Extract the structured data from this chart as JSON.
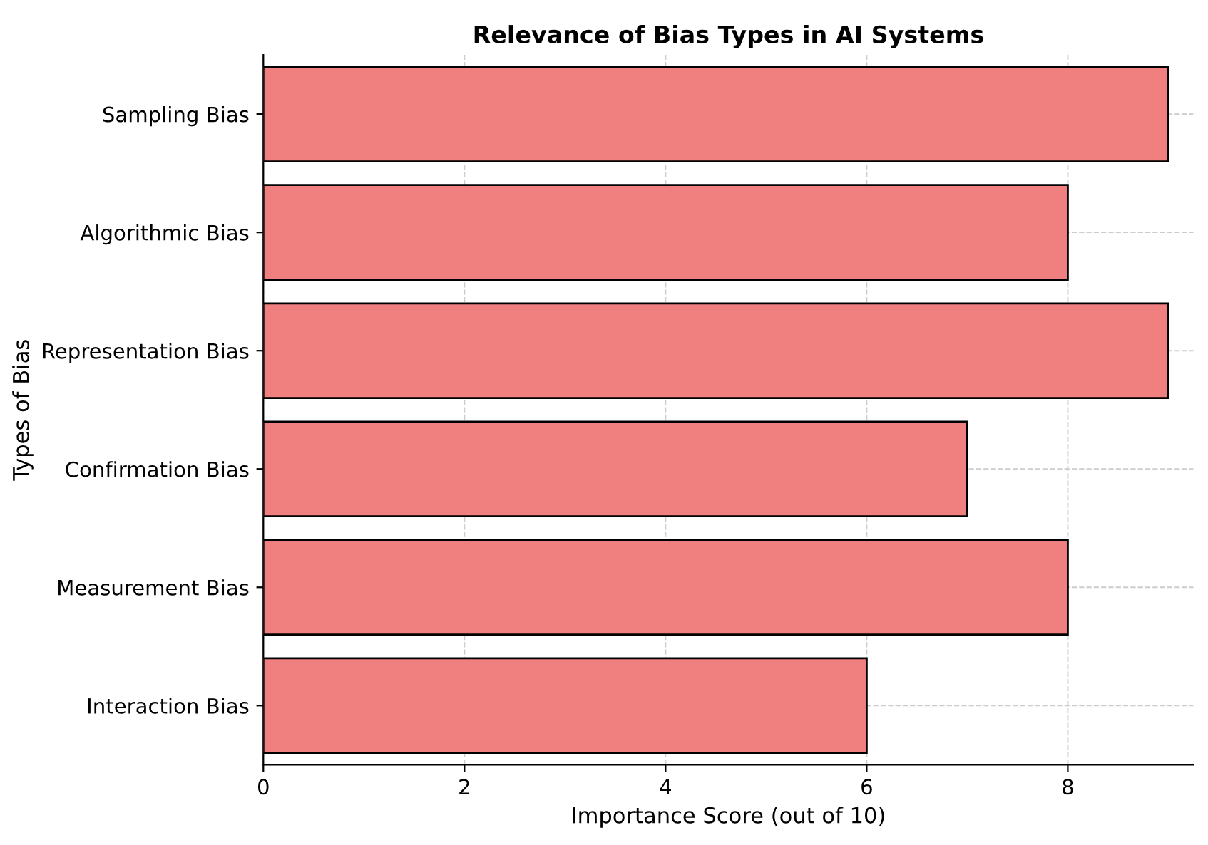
{
  "chart_data": {
    "type": "bar",
    "orientation": "horizontal",
    "title": "Relevance of Bias Types in AI Systems",
    "xlabel": "Importance Score (out of 10)",
    "ylabel": "Types of Bias",
    "categories": [
      "Sampling Bias",
      "Algorithmic Bias",
      "Representation Bias",
      "Confirmation Bias",
      "Measurement Bias",
      "Interaction Bias"
    ],
    "values": [
      9,
      8,
      9,
      7,
      8,
      6
    ],
    "color": "#f08080",
    "xlim": [
      0,
      9.25
    ],
    "xticks": [
      0,
      2,
      4,
      6,
      8
    ],
    "grid": true
  }
}
